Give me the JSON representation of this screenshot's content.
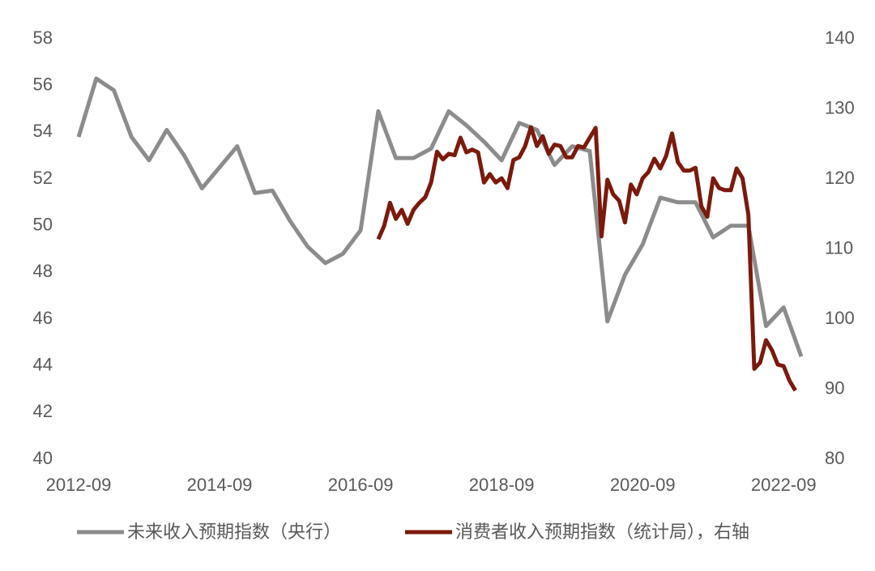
{
  "chart_data": {
    "type": "line",
    "xlim": [
      "2012-09",
      "2022-12"
    ],
    "xticks": [
      "2012-09",
      "2014-09",
      "2016-09",
      "2018-09",
      "2020-09",
      "2022-09"
    ],
    "ylim": [
      40,
      58
    ],
    "yticks": [
      40,
      42,
      44,
      46,
      48,
      50,
      52,
      54,
      56,
      58
    ],
    "y2lim": [
      80,
      140
    ],
    "y2ticks": [
      80,
      90,
      100,
      110,
      120,
      130,
      140
    ],
    "series": [
      {
        "name": "未来收入预期指数（央行）",
        "color": "#8c8c8c",
        "x": [
          "2012-09",
          "2012-12",
          "2013-03",
          "2013-06",
          "2013-09",
          "2013-12",
          "2014-03",
          "2014-06",
          "2014-09",
          "2014-12",
          "2015-03",
          "2015-06",
          "2015-09",
          "2015-12",
          "2016-03",
          "2016-06",
          "2016-09",
          "2016-12",
          "2017-03",
          "2017-06",
          "2017-09",
          "2017-12",
          "2018-03",
          "2018-06",
          "2018-09",
          "2018-12",
          "2019-03",
          "2019-06",
          "2019-09",
          "2019-12",
          "2020-03",
          "2020-06",
          "2020-09",
          "2020-12",
          "2021-03",
          "2021-06",
          "2021-09",
          "2021-12",
          "2022-03",
          "2022-06",
          "2022-09",
          "2022-12"
        ],
        "values": [
          53.8,
          56.3,
          55.8,
          53.8,
          52.8,
          54.1,
          53.0,
          51.6,
          52.5,
          53.4,
          51.4,
          51.5,
          50.2,
          49.1,
          48.4,
          48.8,
          49.8,
          54.9,
          52.9,
          52.9,
          53.3,
          54.9,
          54.3,
          53.6,
          52.8,
          54.4,
          54.1,
          52.6,
          53.4,
          53.2,
          45.9,
          47.9,
          49.2,
          51.2,
          51.0,
          51.0,
          49.5,
          50.0,
          50.0,
          45.7,
          46.5,
          44.4
        ]
      },
      {
        "name": "消费者收入预期指数（统计局），右轴",
        "color": "#7b1a0c",
        "axis": "y2",
        "x": [
          "2016-12",
          "2017-01",
          "2017-02",
          "2017-03",
          "2017-04",
          "2017-05",
          "2017-06",
          "2017-07",
          "2017-08",
          "2017-09",
          "2017-10",
          "2017-11",
          "2017-12",
          "2018-01",
          "2018-02",
          "2018-03",
          "2018-04",
          "2018-05",
          "2018-06",
          "2018-07",
          "2018-08",
          "2018-09",
          "2018-10",
          "2018-11",
          "2018-12",
          "2019-01",
          "2019-02",
          "2019-03",
          "2019-04",
          "2019-05",
          "2019-06",
          "2019-07",
          "2019-08",
          "2019-09",
          "2019-10",
          "2019-11",
          "2019-12",
          "2020-01",
          "2020-02",
          "2020-03",
          "2020-04",
          "2020-05",
          "2020-06",
          "2020-07",
          "2020-08",
          "2020-09",
          "2020-10",
          "2020-11",
          "2020-12",
          "2021-01",
          "2021-02",
          "2021-03",
          "2021-04",
          "2021-05",
          "2021-06",
          "2021-07",
          "2021-08",
          "2021-09",
          "2021-10",
          "2021-11",
          "2021-12",
          "2022-01",
          "2022-02",
          "2022-03",
          "2022-04",
          "2022-05",
          "2022-06",
          "2022-07",
          "2022-08",
          "2022-09",
          "2022-10",
          "2022-11"
        ],
        "values": [
          111.4,
          113.3,
          116.6,
          114.3,
          115.6,
          113.6,
          115.6,
          116.6,
          117.4,
          119.5,
          123.9,
          122.8,
          123.6,
          123.4,
          125.9,
          123.8,
          124.2,
          123.8,
          119.5,
          120.7,
          119.5,
          120.1,
          118.7,
          122.7,
          123.1,
          124.7,
          127.4,
          124.7,
          126.1,
          123.6,
          124.9,
          124.7,
          123.1,
          123.1,
          124.7,
          124.5,
          125.9,
          127.3,
          111.8,
          119.9,
          117.8,
          116.9,
          113.8,
          119.2,
          117.8,
          120.1,
          121.0,
          122.9,
          121.5,
          123.3,
          126.5,
          122.4,
          121.2,
          121.2,
          121.6,
          116.1,
          114.6,
          120.1,
          118.7,
          118.4,
          118.4,
          121.5,
          120.1,
          114.9,
          92.9,
          93.8,
          97.0,
          95.6,
          93.5,
          93.3,
          91.2,
          89.8
        ]
      }
    ]
  }
}
